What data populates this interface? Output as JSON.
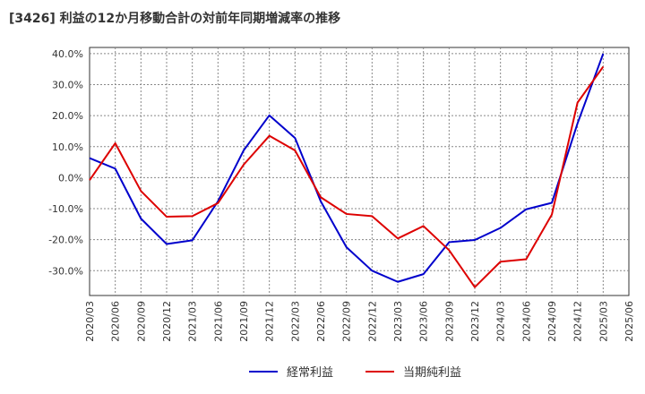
{
  "chart_data": {
    "type": "line",
    "title": "[3426]  利益の12か月移動合計の対前年同期増減率の推移",
    "xlabel": "",
    "ylabel": "",
    "ylim": [
      -38,
      42
    ],
    "yticks": [
      -30,
      -20,
      -10,
      0,
      10,
      20,
      30,
      40
    ],
    "ytick_labels": [
      "-30.0%",
      "-20.0%",
      "-10.0%",
      "0.0%",
      "10.0%",
      "20.0%",
      "30.0%",
      "40.0%"
    ],
    "categories": [
      "2020/03",
      "2020/06",
      "2020/09",
      "2020/12",
      "2021/03",
      "2021/06",
      "2021/09",
      "2021/12",
      "2022/03",
      "2022/06",
      "2022/09",
      "2022/12",
      "2023/03",
      "2023/06",
      "2023/09",
      "2023/12",
      "2024/03",
      "2024/06",
      "2024/09",
      "2024/12",
      "2025/03",
      "2025/06"
    ],
    "grid": true,
    "legend_position": "bottom-center",
    "series": [
      {
        "name": "経常利益",
        "color": "#0000cc",
        "values": [
          6.3,
          2.9,
          -13.2,
          -21.4,
          -20.2,
          -7.6,
          8.8,
          20.1,
          12.8,
          -7.6,
          -22.4,
          -30.0,
          -33.6,
          -31.1,
          -20.8,
          -20.1,
          -16.2,
          -10.2,
          -8.1,
          17.5,
          40.0,
          null
        ]
      },
      {
        "name": "当期純利益",
        "color": "#dd0000",
        "values": [
          -0.8,
          11.1,
          -4.3,
          -12.6,
          -12.4,
          -8.2,
          4.2,
          13.5,
          8.8,
          -6.3,
          -11.7,
          -12.4,
          -19.6,
          -15.6,
          -23.4,
          -35.3,
          -27.1,
          -26.3,
          -11.9,
          24.2,
          35.8,
          null
        ]
      }
    ]
  }
}
